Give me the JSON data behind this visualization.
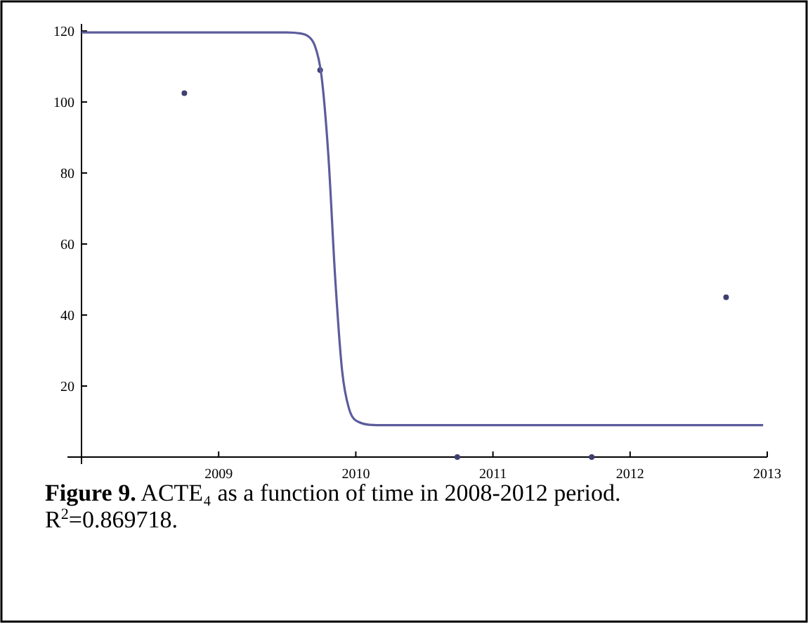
{
  "chart_data": {
    "type": "scatter",
    "xlim": [
      2008,
      2013
    ],
    "ylim": [
      0,
      122
    ],
    "xticks": [
      {
        "value": 2008,
        "label": null
      },
      2009,
      2010,
      2011,
      2012,
      2013
    ],
    "yticks": [
      20,
      40,
      60,
      80,
      100,
      120
    ],
    "grid": false,
    "marker": "circle",
    "series": [
      {
        "color": "#3f3f6f",
        "x": [
          2008.75,
          2009.74,
          2010.74,
          2011.72,
          2012.7
        ],
        "values": [
          102.5,
          109,
          0,
          0,
          45
        ]
      },
      {
        "type": "line",
        "color": "#5c5c9c",
        "marker": "none",
        "x": [
          2008,
          2009,
          2009.5,
          2009.6,
          2009.65,
          2009.7,
          2009.75,
          2009.8,
          2009.85,
          2009.9,
          2009.95,
          2010,
          2010.1,
          2010.2,
          2011,
          2012,
          2012.97
        ],
        "values": [
          119.6,
          119.6,
          119.6,
          119.3,
          118.6,
          116,
          107.3,
          84.9,
          50.3,
          24.4,
          13.7,
          10.3,
          9.1,
          9,
          9,
          9,
          9
        ]
      }
    ],
    "annotations": [
      "Figure 9. ACTE₄ as a function of time in 2008-2012 period.",
      "R$^{2}$=0.869718."
    ]
  }
}
